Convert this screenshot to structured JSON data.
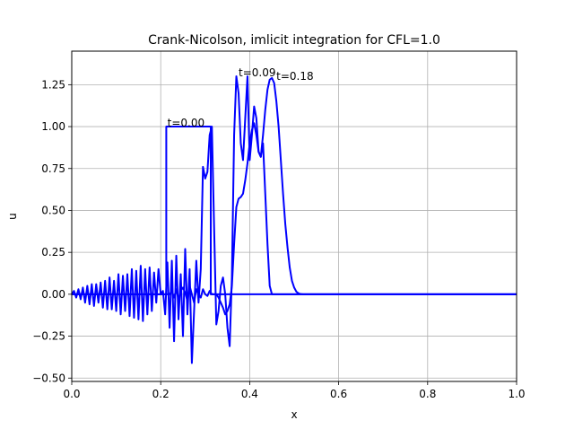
{
  "chart_data": {
    "type": "line",
    "title": "Crank-Nicolson, imlicit integration for  CFL=1.0",
    "xlabel": "x",
    "ylabel": "u",
    "xlim": [
      0.0,
      1.0
    ],
    "ylim": [
      -0.52,
      1.45
    ],
    "grid": true,
    "xticks": [
      0.0,
      0.2,
      0.4,
      0.6,
      0.8,
      1.0
    ],
    "xtick_labels": [
      "0.0",
      "0.2",
      "0.4",
      "0.6",
      "0.8",
      "1.0"
    ],
    "yticks": [
      -0.5,
      -0.25,
      0.0,
      0.25,
      0.5,
      0.75,
      1.0,
      1.25
    ],
    "ytick_labels": [
      "−0.50",
      "−0.25",
      "0.00",
      "0.25",
      "0.50",
      "0.75",
      "1.00",
      "1.25"
    ],
    "line_color": "#0000ff",
    "annotations": [
      {
        "text": "t=0.00",
        "x": 0.215,
        "y": 1.0
      },
      {
        "text": "t=0.09",
        "x": 0.375,
        "y": 1.3
      },
      {
        "text": "t=0.18",
        "x": 0.46,
        "y": 1.28
      }
    ],
    "series": [
      {
        "x": [
          0.0,
          0.2125,
          0.2125,
          0.3125,
          0.3125,
          1.0
        ],
        "y": [
          0.0,
          0.0,
          1.0,
          1.0,
          0.0,
          0.0
        ]
      },
      {
        "x": [
          0.0,
          0.005,
          0.01,
          0.015,
          0.02,
          0.025,
          0.03,
          0.035,
          0.04,
          0.045,
          0.05,
          0.055,
          0.06,
          0.065,
          0.07,
          0.075,
          0.08,
          0.085,
          0.09,
          0.095,
          0.1,
          0.105,
          0.11,
          0.115,
          0.12,
          0.125,
          0.13,
          0.135,
          0.14,
          0.145,
          0.15,
          0.155,
          0.16,
          0.165,
          0.17,
          0.175,
          0.18,
          0.185,
          0.19,
          0.195,
          0.2,
          0.205,
          0.21,
          0.215,
          0.22,
          0.225,
          0.23,
          0.235,
          0.24,
          0.245,
          0.25,
          0.255,
          0.26,
          0.265,
          0.27,
          0.275,
          0.28,
          0.285,
          0.29,
          0.295,
          0.3,
          0.305,
          0.31,
          0.315,
          0.32,
          0.325,
          0.33,
          0.335,
          0.34,
          0.345,
          0.35,
          0.355,
          0.36,
          0.365,
          0.37,
          0.375,
          0.38,
          0.385,
          0.39,
          0.395,
          0.4,
          0.405,
          0.41,
          0.415,
          0.42,
          0.425,
          0.43,
          0.435,
          0.44,
          0.445,
          0.45,
          1.0
        ],
        "y": [
          0.0,
          0.02,
          -0.02,
          0.03,
          -0.03,
          0.04,
          -0.05,
          0.05,
          -0.06,
          0.06,
          -0.07,
          0.06,
          -0.05,
          0.07,
          -0.08,
          0.08,
          -0.09,
          0.1,
          -0.09,
          0.08,
          -0.1,
          0.12,
          -0.12,
          0.11,
          -0.1,
          0.12,
          -0.13,
          0.15,
          -0.14,
          0.14,
          -0.15,
          0.17,
          -0.16,
          0.15,
          -0.12,
          0.16,
          -0.1,
          0.13,
          -0.05,
          0.15,
          0.0,
          0.02,
          -0.12,
          0.19,
          -0.2,
          0.2,
          -0.28,
          0.23,
          -0.15,
          0.12,
          -0.25,
          0.27,
          -0.12,
          0.15,
          -0.41,
          -0.1,
          0.2,
          -0.05,
          0.15,
          0.76,
          0.69,
          0.73,
          0.95,
          1.0,
          0.4,
          -0.18,
          -0.1,
          0.05,
          0.1,
          0.0,
          -0.2,
          -0.31,
          0.1,
          0.95,
          1.3,
          1.2,
          0.9,
          0.8,
          1.05,
          1.3,
          0.8,
          0.95,
          1.12,
          1.05,
          0.85,
          0.82,
          0.9,
          0.6,
          0.3,
          0.05,
          0.0,
          0.0
        ]
      },
      {
        "x": [
          0.0,
          0.22,
          0.225,
          0.23,
          0.235,
          0.24,
          0.245,
          0.25,
          0.255,
          0.26,
          0.265,
          0.27,
          0.275,
          0.28,
          0.285,
          0.29,
          0.295,
          0.3,
          0.305,
          0.31,
          0.315,
          0.32,
          0.325,
          0.33,
          0.335,
          0.34,
          0.345,
          0.35,
          0.355,
          0.36,
          0.365,
          0.37,
          0.375,
          0.38,
          0.385,
          0.39,
          0.395,
          0.4,
          0.405,
          0.41,
          0.415,
          0.42,
          0.425,
          0.43,
          0.435,
          0.44,
          0.445,
          0.45,
          0.455,
          0.46,
          0.465,
          0.47,
          0.475,
          0.48,
          0.485,
          0.49,
          0.495,
          0.5,
          0.505,
          0.51,
          0.515,
          0.52,
          0.525,
          0.53,
          0.535,
          0.54,
          0.545,
          1.0
        ],
        "y": [
          0.0,
          0.0,
          0.02,
          -0.02,
          0.03,
          -0.03,
          0.02,
          0.04,
          0.01,
          -0.04,
          0.05,
          0.0,
          -0.05,
          0.03,
          0.0,
          -0.02,
          0.03,
          0.0,
          -0.01,
          0.02,
          0.0,
          0.0,
          0.0,
          -0.02,
          -0.05,
          -0.08,
          -0.12,
          -0.1,
          -0.06,
          0.05,
          0.3,
          0.52,
          0.57,
          0.58,
          0.6,
          0.68,
          0.78,
          0.9,
          0.98,
          1.02,
          0.95,
          0.85,
          0.82,
          0.95,
          1.1,
          1.22,
          1.28,
          1.29,
          1.26,
          1.15,
          1.0,
          0.8,
          0.6,
          0.42,
          0.28,
          0.16,
          0.08,
          0.04,
          0.015,
          0.005,
          0.001,
          0.0,
          0.0,
          0.0,
          0.0,
          0.0,
          0.0,
          0.0
        ]
      }
    ]
  }
}
